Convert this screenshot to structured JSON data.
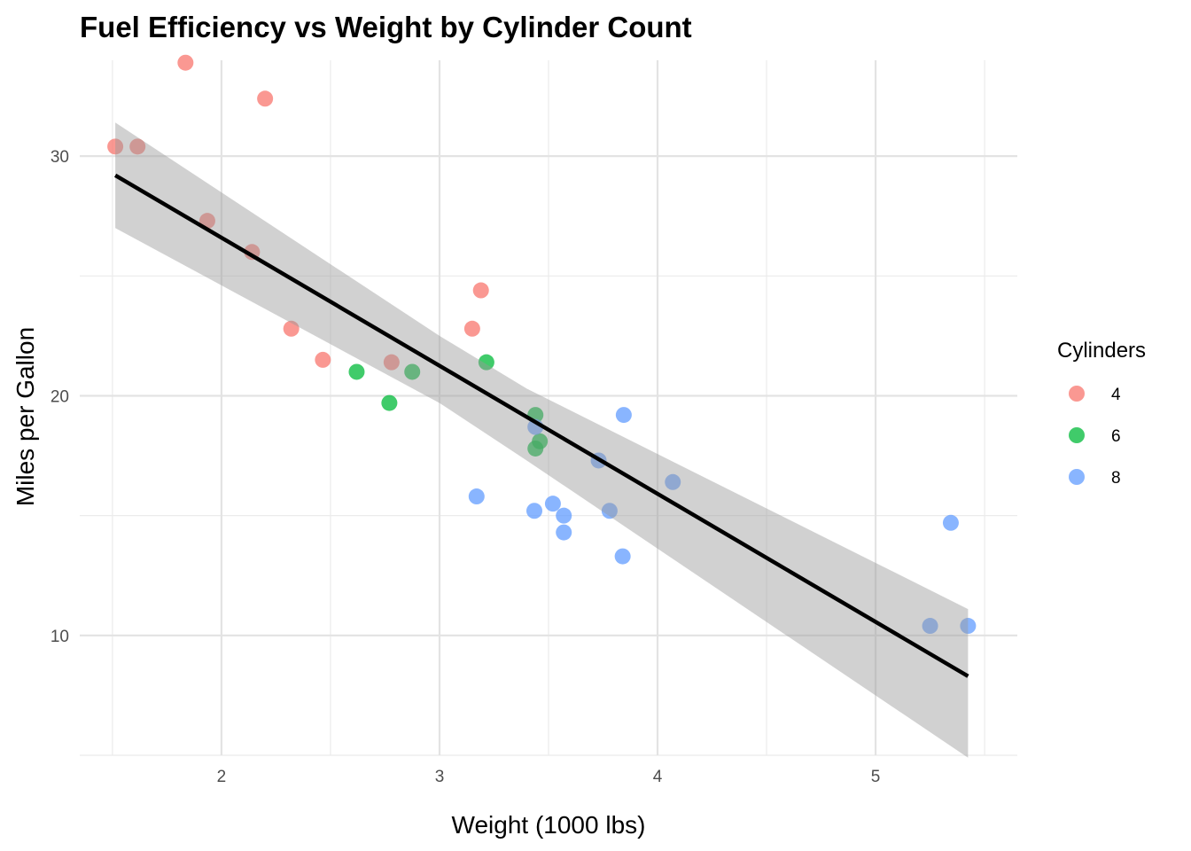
{
  "chart_data": {
    "type": "scatter",
    "title": "Fuel Efficiency vs Weight by Cylinder Count",
    "xlabel": "Weight (1000 lbs)",
    "ylabel": "Miles per Gallon",
    "xlim": [
      1.35,
      5.65
    ],
    "ylim": [
      5.0,
      34.0
    ],
    "x_ticks": [
      2,
      3,
      4,
      5
    ],
    "y_ticks": [
      10,
      20,
      30
    ],
    "grid": true,
    "legend": {
      "title": "Cylinders",
      "position": "right"
    },
    "series": [
      {
        "name": "4",
        "color": "#F8766D",
        "points": [
          {
            "x": 2.32,
            "y": 22.8
          },
          {
            "x": 3.19,
            "y": 24.4
          },
          {
            "x": 3.15,
            "y": 22.8
          },
          {
            "x": 2.2,
            "y": 32.4
          },
          {
            "x": 1.615,
            "y": 30.4
          },
          {
            "x": 1.835,
            "y": 33.9
          },
          {
            "x": 2.465,
            "y": 21.5
          },
          {
            "x": 1.935,
            "y": 27.3
          },
          {
            "x": 2.14,
            "y": 26.0
          },
          {
            "x": 1.513,
            "y": 30.4
          },
          {
            "x": 2.78,
            "y": 21.4
          }
        ]
      },
      {
        "name": "6",
        "color": "#00BA38",
        "points": [
          {
            "x": 2.62,
            "y": 21.0
          },
          {
            "x": 2.875,
            "y": 21.0
          },
          {
            "x": 3.215,
            "y": 21.4
          },
          {
            "x": 3.46,
            "y": 18.1
          },
          {
            "x": 3.44,
            "y": 19.2
          },
          {
            "x": 3.44,
            "y": 17.8
          },
          {
            "x": 2.77,
            "y": 19.7
          }
        ]
      },
      {
        "name": "8",
        "color": "#619CFF",
        "points": [
          {
            "x": 3.44,
            "y": 18.7
          },
          {
            "x": 3.57,
            "y": 14.3
          },
          {
            "x": 4.07,
            "y": 16.4
          },
          {
            "x": 3.73,
            "y": 17.3
          },
          {
            "x": 3.78,
            "y": 15.2
          },
          {
            "x": 5.25,
            "y": 10.4
          },
          {
            "x": 5.424,
            "y": 10.4
          },
          {
            "x": 5.345,
            "y": 14.7
          },
          {
            "x": 3.52,
            "y": 15.5
          },
          {
            "x": 3.435,
            "y": 15.2
          },
          {
            "x": 3.84,
            "y": 13.3
          },
          {
            "x": 3.845,
            "y": 19.2
          },
          {
            "x": 3.17,
            "y": 15.8
          },
          {
            "x": 3.57,
            "y": 15.0
          }
        ]
      }
    ],
    "trend_line": {
      "method": "linear",
      "color": "#000000",
      "start": {
        "x": 1.513,
        "y": 29.2
      },
      "end": {
        "x": 5.424,
        "y": 8.3
      },
      "confidence_band": {
        "color": "#999999",
        "lower": [
          {
            "x": 1.513,
            "y": 27.0
          },
          {
            "x": 3.0,
            "y": 19.7
          },
          {
            "x": 3.4,
            "y": 17.3
          },
          {
            "x": 5.424,
            "y": 4.9
          }
        ],
        "upper": [
          {
            "x": 1.513,
            "y": 31.4
          },
          {
            "x": 3.0,
            "y": 22.5
          },
          {
            "x": 3.4,
            "y": 20.3
          },
          {
            "x": 5.424,
            "y": 11.1
          }
        ]
      }
    }
  }
}
